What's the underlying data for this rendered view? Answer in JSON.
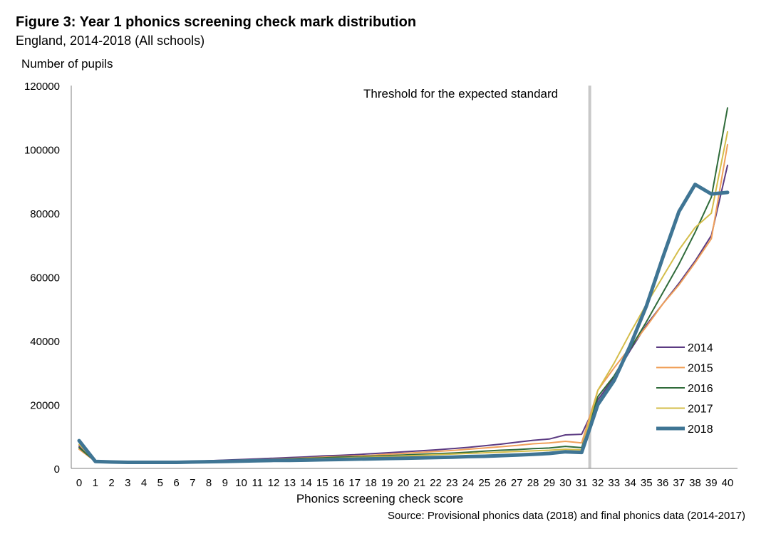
{
  "title": "Figure 3: Year 1 phonics screening check mark distribution",
  "subtitle": "England, 2014-2018 (All schools)",
  "source": "Source: Provisional phonics data (2018) and final phonics data (2014-2017)",
  "threshold_label": "Threshold for the expected standard",
  "colors": {
    "2014": "#5b3a82",
    "2015": "#f0a05a",
    "2016": "#2f6b3a",
    "2017": "#d4bd4a",
    "2018": "#3f7594",
    "threshold": "#c8c8c8",
    "axis": "#7f7f7f"
  },
  "chart_data": {
    "type": "line",
    "title": "Figure 3: Year 1 phonics screening check mark distribution",
    "subtitle": "England, 2014-2018 (All schools)",
    "xlabel": "Phonics screening check score",
    "ylabel": "Number of pupils",
    "ylim": [
      0,
      120000
    ],
    "yticks": [
      0,
      20000,
      40000,
      60000,
      80000,
      100000,
      120000
    ],
    "x": [
      0,
      1,
      2,
      3,
      4,
      5,
      6,
      7,
      8,
      9,
      10,
      11,
      12,
      13,
      14,
      15,
      16,
      17,
      18,
      19,
      20,
      21,
      22,
      23,
      24,
      25,
      26,
      27,
      28,
      29,
      30,
      31,
      32,
      33,
      34,
      35,
      36,
      37,
      38,
      39,
      40
    ],
    "threshold_x": 32,
    "legend_position": "right",
    "grid": false,
    "series": [
      {
        "name": "2014",
        "values": [
          7000,
          2400,
          2100,
          2000,
          2000,
          2000,
          2000,
          2200,
          2400,
          2600,
          2800,
          3000,
          3200,
          3400,
          3600,
          3900,
          4100,
          4300,
          4600,
          4900,
          5200,
          5500,
          5800,
          6200,
          6600,
          7100,
          7600,
          8200,
          8800,
          9200,
          10500,
          10700,
          21500,
          28500,
          37000,
          45000,
          51500,
          58000,
          65000,
          73000,
          95000
        ]
      },
      {
        "name": "2015",
        "values": [
          6000,
          2200,
          2000,
          1900,
          1900,
          1900,
          1900,
          2000,
          2200,
          2400,
          2600,
          2700,
          2900,
          3100,
          3300,
          3500,
          3700,
          3900,
          4100,
          4400,
          4700,
          5000,
          5300,
          5600,
          6000,
          6400,
          6800,
          7200,
          7700,
          8000,
          8500,
          8000,
          24500,
          31500,
          38000,
          44500,
          51500,
          57500,
          64500,
          72000,
          101500
        ]
      },
      {
        "name": "2016",
        "values": [
          6500,
          2200,
          2000,
          1900,
          1900,
          1900,
          1900,
          2000,
          2200,
          2300,
          2500,
          2700,
          2800,
          3000,
          3200,
          3300,
          3500,
          3600,
          3800,
          4000,
          4200,
          4400,
          4600,
          4800,
          5100,
          5400,
          5700,
          5900,
          6200,
          6400,
          6900,
          6500,
          22500,
          29000,
          37500,
          46000,
          55000,
          64000,
          74000,
          85000,
          113000
        ]
      },
      {
        "name": "2017",
        "values": [
          7500,
          2200,
          2000,
          1900,
          1900,
          1900,
          1900,
          2000,
          2100,
          2300,
          2400,
          2600,
          2700,
          2800,
          3000,
          3100,
          3200,
          3400,
          3500,
          3700,
          3900,
          4100,
          4300,
          4500,
          4700,
          4900,
          5100,
          5300,
          5500,
          5700,
          6000,
          5800,
          24500,
          33000,
          42500,
          51500,
          60000,
          68500,
          75500,
          80000,
          105500
        ]
      },
      {
        "name": "2018",
        "values": [
          8700,
          2200,
          2000,
          1900,
          1900,
          1900,
          1900,
          2000,
          2100,
          2200,
          2300,
          2400,
          2500,
          2500,
          2600,
          2700,
          2800,
          2900,
          3000,
          3100,
          3200,
          3300,
          3400,
          3500,
          3700,
          3800,
          4000,
          4200,
          4400,
          4700,
          5200,
          5000,
          20000,
          27500,
          38500,
          51000,
          66000,
          80500,
          89000,
          86000,
          86500
        ]
      }
    ]
  }
}
